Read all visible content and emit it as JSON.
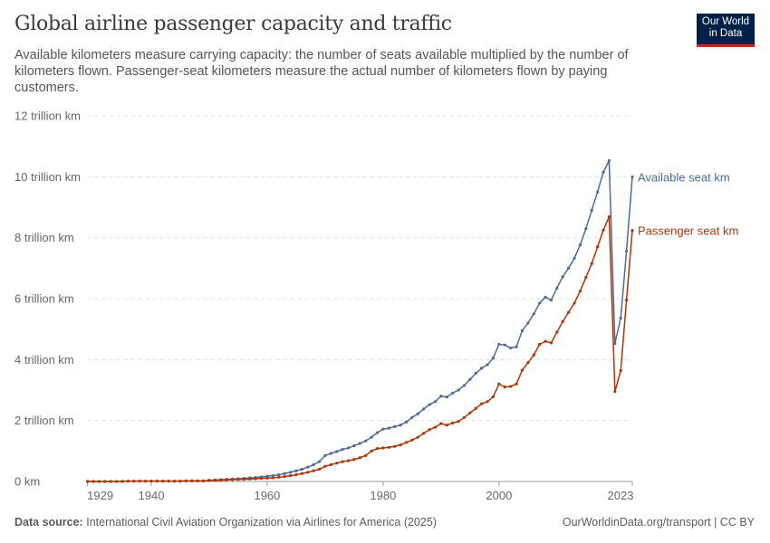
{
  "header": {
    "title": "Global airline passenger capacity and traffic",
    "subtitle": "Available kilometers measure carrying capacity: the number of seats available multiplied by the number of kilometers flown. Passenger-seat kilometers measure the actual number of kilometers flown by paying customers.",
    "logo": "Our World in Data"
  },
  "footer": {
    "source_label": "Data source:",
    "source": "International Civil Aviation Organization via Airlines for America (2025)",
    "link": "OurWorldinData.org/transport | CC BY"
  },
  "chart_data": {
    "type": "line",
    "title": "Global airline passenger capacity and traffic",
    "ylim": [
      0,
      12
    ],
    "xlim": [
      1929,
      2023
    ],
    "y_unit": "trillion km",
    "y_ticks": [
      {
        "v": 0,
        "label": "0 km"
      },
      {
        "v": 2,
        "label": "2 trillion km"
      },
      {
        "v": 4,
        "label": "4 trillion km"
      },
      {
        "v": 6,
        "label": "6 trillion km"
      },
      {
        "v": 8,
        "label": "8 trillion km"
      },
      {
        "v": 10,
        "label": "10 trillion km"
      },
      {
        "v": 12,
        "label": "12 trillion km"
      }
    ],
    "x_ticks": [
      {
        "v": 1929,
        "label": "1929"
      },
      {
        "v": 1940,
        "label": "1940"
      },
      {
        "v": 1960,
        "label": "1960"
      },
      {
        "v": 1980,
        "label": "1980"
      },
      {
        "v": 2000,
        "label": "2000"
      },
      {
        "v": 2023,
        "label": "2023"
      }
    ],
    "grid": "horizontal dashed",
    "legend": "inline labels at line ends (right)",
    "x": [
      1929,
      1930,
      1931,
      1932,
      1933,
      1934,
      1935,
      1936,
      1937,
      1938,
      1939,
      1940,
      1941,
      1942,
      1943,
      1944,
      1945,
      1946,
      1947,
      1948,
      1949,
      1950,
      1951,
      1952,
      1953,
      1954,
      1955,
      1956,
      1957,
      1958,
      1959,
      1960,
      1961,
      1962,
      1963,
      1964,
      1965,
      1966,
      1967,
      1968,
      1969,
      1970,
      1971,
      1972,
      1973,
      1974,
      1975,
      1976,
      1977,
      1978,
      1979,
      1980,
      1981,
      1982,
      1983,
      1984,
      1985,
      1986,
      1987,
      1988,
      1989,
      1990,
      1991,
      1992,
      1993,
      1994,
      1995,
      1996,
      1997,
      1998,
      1999,
      2000,
      2001,
      2002,
      2003,
      2004,
      2005,
      2006,
      2007,
      2008,
      2009,
      2010,
      2011,
      2012,
      2013,
      2014,
      2015,
      2016,
      2017,
      2018,
      2019,
      2020,
      2021,
      2022,
      2023
    ],
    "series": [
      {
        "name": "Available seat km",
        "color": "#4c6a9c",
        "values": [
          0,
          0,
          0,
          0,
          0,
          0,
          0,
          0.01,
          0.01,
          0.01,
          0.01,
          0.01,
          0.01,
          0.01,
          0.01,
          0.01,
          0.01,
          0.02,
          0.02,
          0.02,
          0.02,
          0.04,
          0.05,
          0.06,
          0.07,
          0.08,
          0.09,
          0.1,
          0.12,
          0.13,
          0.15,
          0.17,
          0.19,
          0.22,
          0.26,
          0.3,
          0.35,
          0.4,
          0.47,
          0.55,
          0.65,
          0.85,
          0.92,
          0.98,
          1.05,
          1.1,
          1.17,
          1.25,
          1.33,
          1.45,
          1.6,
          1.72,
          1.75,
          1.8,
          1.85,
          1.95,
          2.1,
          2.22,
          2.38,
          2.52,
          2.62,
          2.8,
          2.77,
          2.9,
          3.0,
          3.15,
          3.35,
          3.55,
          3.72,
          3.83,
          4.05,
          4.5,
          4.48,
          4.38,
          4.42,
          4.95,
          5.2,
          5.5,
          5.85,
          6.05,
          5.95,
          6.35,
          6.72,
          7.0,
          7.33,
          7.76,
          8.3,
          8.9,
          9.5,
          10.15,
          10.53,
          4.53,
          5.36,
          7.56,
          10.0
        ]
      },
      {
        "name": "Passenger seat km",
        "color": "#b13507",
        "values": [
          0,
          0,
          0,
          0,
          0,
          0,
          0,
          0.01,
          0.01,
          0.01,
          0.01,
          0.01,
          0.01,
          0.01,
          0.01,
          0.01,
          0.01,
          0.02,
          0.02,
          0.02,
          0.02,
          0.03,
          0.035,
          0.04,
          0.05,
          0.06,
          0.065,
          0.07,
          0.08,
          0.09,
          0.1,
          0.11,
          0.12,
          0.14,
          0.16,
          0.19,
          0.22,
          0.26,
          0.3,
          0.35,
          0.4,
          0.5,
          0.55,
          0.6,
          0.65,
          0.68,
          0.72,
          0.78,
          0.85,
          1.0,
          1.08,
          1.1,
          1.12,
          1.15,
          1.2,
          1.28,
          1.36,
          1.45,
          1.58,
          1.7,
          1.78,
          1.9,
          1.85,
          1.92,
          1.97,
          2.1,
          2.25,
          2.4,
          2.55,
          2.62,
          2.78,
          3.2,
          3.1,
          3.12,
          3.2,
          3.65,
          3.9,
          4.15,
          4.5,
          4.6,
          4.55,
          4.9,
          5.25,
          5.55,
          5.85,
          6.25,
          6.7,
          7.15,
          7.7,
          8.25,
          8.69,
          2.95,
          3.64,
          5.95,
          8.24
        ]
      }
    ]
  }
}
